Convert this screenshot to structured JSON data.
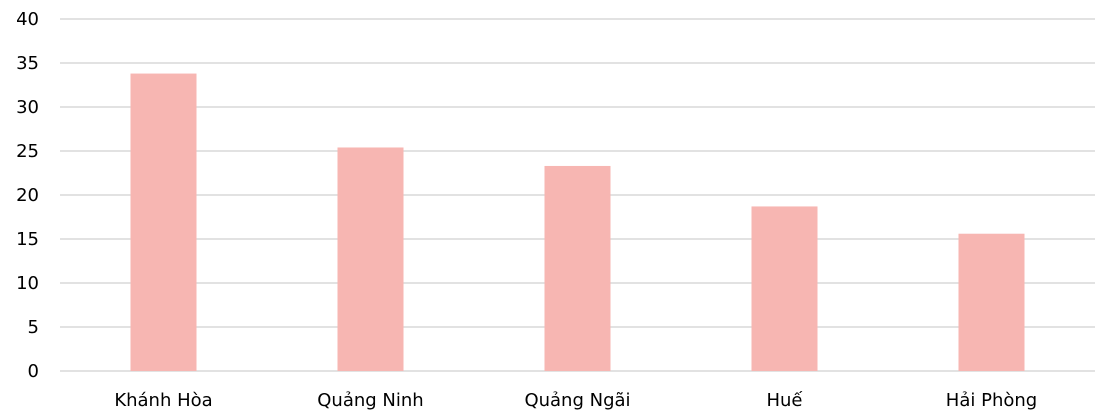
{
  "chart_data": {
    "type": "bar",
    "title": "",
    "xlabel": "",
    "ylabel": "",
    "categories": [
      "Khánh Hòa",
      "Quảng Ninh",
      "Quảng Ngãi",
      "Huế",
      "Hải Phòng"
    ],
    "values": [
      33.8,
      25.4,
      23.3,
      18.7,
      15.6
    ],
    "ylim": [
      0,
      40
    ],
    "yticks": [
      0,
      5,
      10,
      15,
      20,
      25,
      30,
      35,
      40
    ],
    "grid": true,
    "legend": "none",
    "bar_color": "#f7b6b2"
  }
}
